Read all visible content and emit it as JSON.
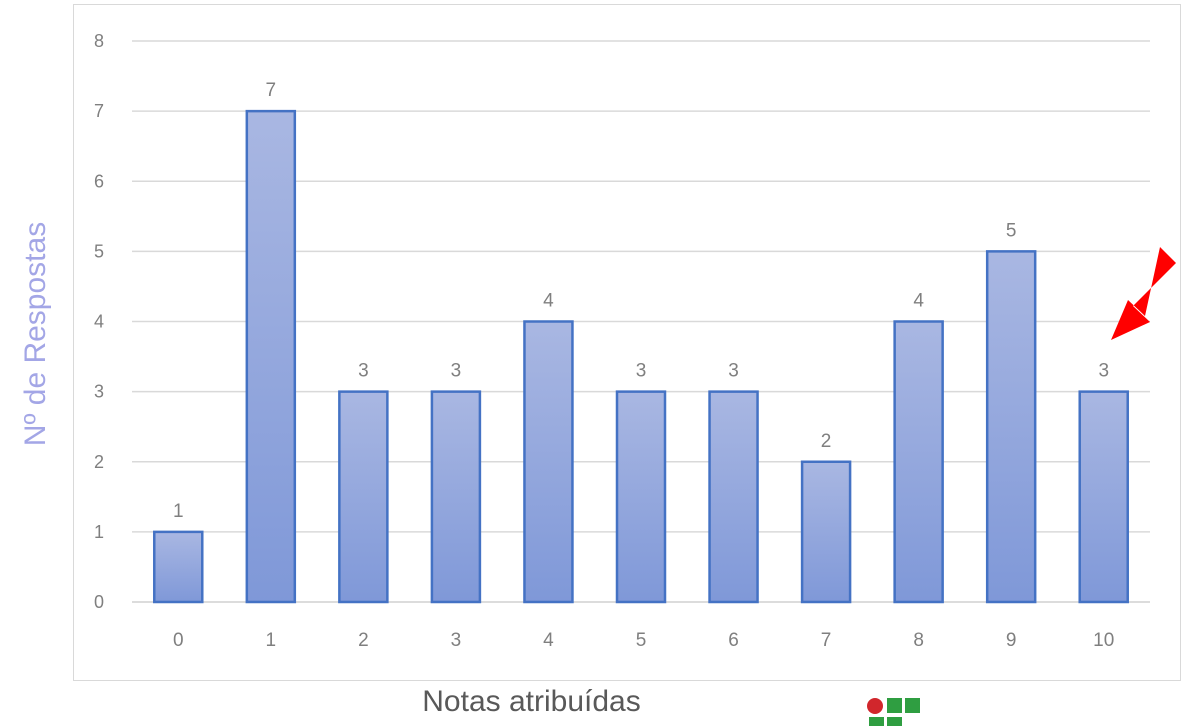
{
  "chart_data": {
    "type": "bar",
    "categories": [
      "0",
      "1",
      "2",
      "3",
      "4",
      "5",
      "6",
      "7",
      "8",
      "9",
      "10"
    ],
    "values": [
      1,
      7,
      3,
      3,
      4,
      3,
      3,
      2,
      4,
      5,
      3
    ],
    "title": "",
    "xlabel": "Notas atribuídas",
    "ylabel": "Nº de Respostas",
    "ylim": [
      0,
      8
    ],
    "yticks": [
      0,
      1,
      2,
      3,
      4,
      5,
      6,
      7,
      8
    ],
    "grid": true,
    "data_labels": true,
    "bar_color": "#8fa3dc",
    "bar_border_color": "#4472c4",
    "annotation": {
      "type": "arrow",
      "color": "#ff0000",
      "points_to": "10"
    }
  },
  "logo": {
    "colors": {
      "red": "#d1262c",
      "green": "#2f9e41"
    }
  }
}
